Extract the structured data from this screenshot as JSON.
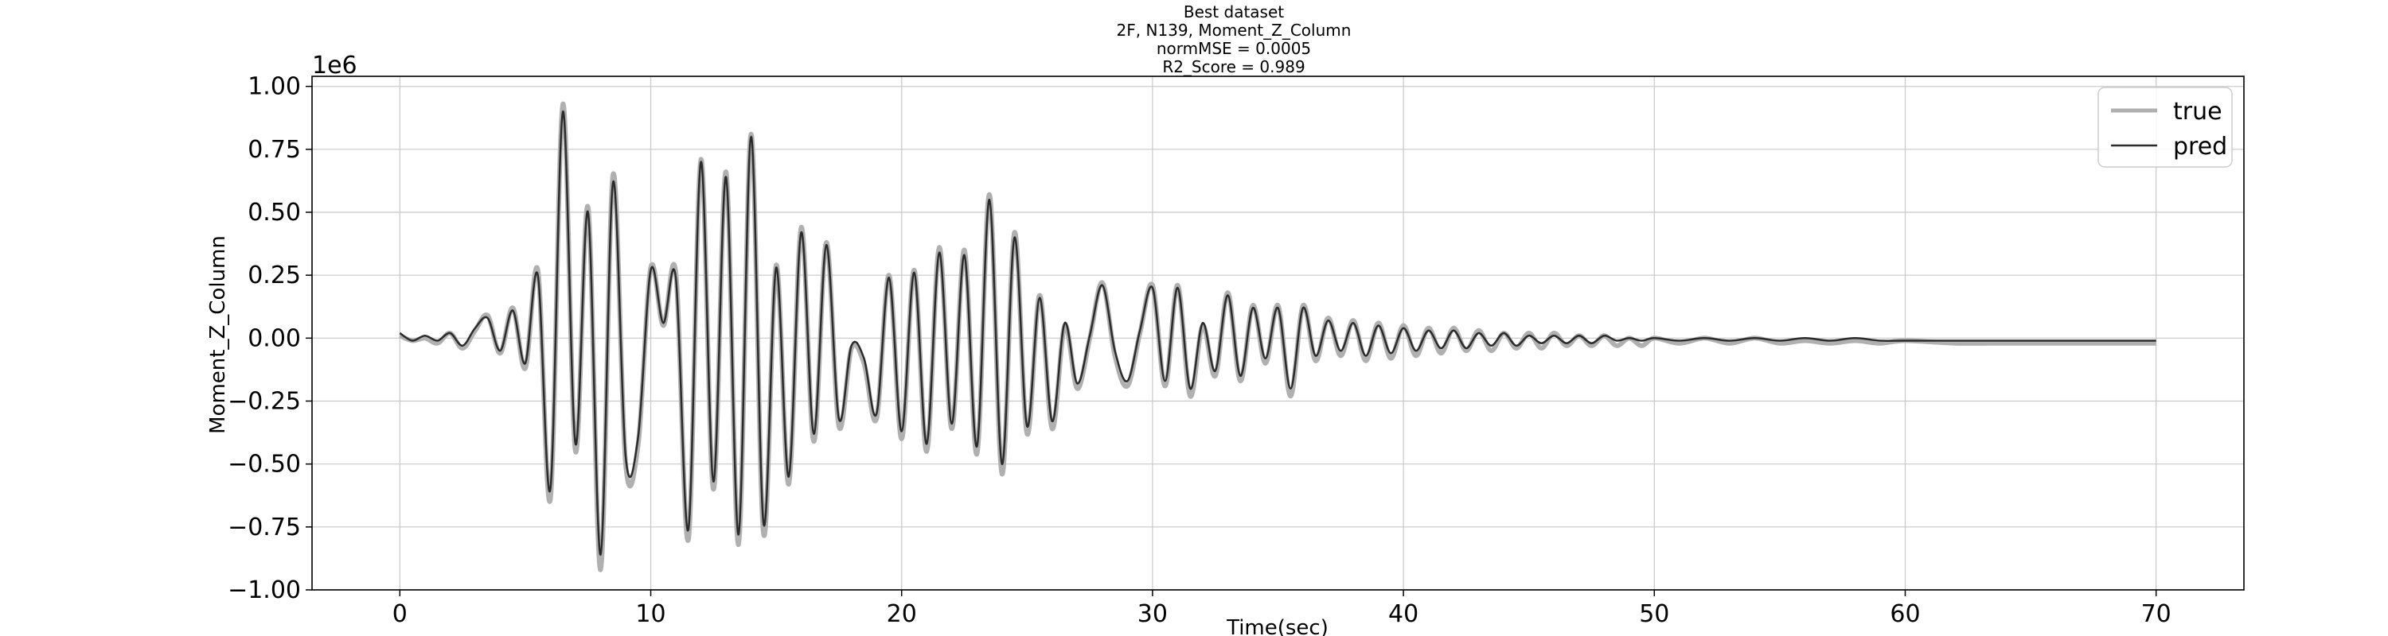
{
  "chart_data": {
    "type": "line",
    "title_lines": [
      "Best dataset",
      "2F, N139, Moment_Z_Column",
      "normMSE = 0.0005",
      "R2_Score = 0.989"
    ],
    "xlabel": "Time(sec)",
    "ylabel": "Moment_Z_Column",
    "y_offset_label": "1e6",
    "xlim": [
      -3.5,
      73.5
    ],
    "ylim": [
      -1.0,
      1.04
    ],
    "x_ticks": [
      0,
      10,
      20,
      30,
      40,
      50,
      60,
      70
    ],
    "x_tick_labels": [
      "0",
      "10",
      "20",
      "30",
      "40",
      "50",
      "60",
      "70"
    ],
    "y_ticks": [
      1.0,
      0.75,
      0.5,
      0.25,
      0.0,
      -0.25,
      -0.5,
      -0.75,
      -1.0
    ],
    "y_tick_labels": [
      "1.00",
      "0.75",
      "0.50",
      "0.25",
      "0.00",
      "−0.25",
      "−0.50",
      "−0.75",
      "−1.00"
    ],
    "grid": true,
    "legend_position": "top-right",
    "series": [
      {
        "name": "true",
        "color": "#b0b0b0",
        "x": [
          0,
          0.5,
          1.0,
          1.5,
          2.0,
          2.5,
          3.0,
          3.5,
          4.0,
          4.5,
          5.0,
          5.5,
          6.0,
          6.5,
          7.0,
          7.5,
          8.0,
          8.5,
          9.0,
          9.5,
          10.0,
          10.5,
          11.0,
          11.5,
          12.0,
          12.5,
          13.0,
          13.5,
          14.0,
          14.5,
          15.0,
          15.5,
          16.0,
          16.5,
          17.0,
          17.5,
          18.0,
          18.5,
          19.0,
          19.5,
          20.0,
          20.5,
          21.0,
          21.5,
          22.0,
          22.5,
          23.0,
          23.5,
          24.0,
          24.5,
          25.0,
          25.5,
          26.0,
          26.5,
          27.0,
          27.5,
          28.0,
          28.5,
          29.0,
          29.5,
          30.0,
          30.5,
          31.0,
          31.5,
          32.0,
          32.5,
          33.0,
          33.5,
          34.0,
          34.5,
          35.0,
          35.5,
          36.0,
          36.5,
          37.0,
          37.5,
          38.0,
          38.5,
          39.0,
          39.5,
          40.0,
          40.5,
          41.0,
          41.5,
          42.0,
          42.5,
          43.0,
          43.5,
          44.0,
          44.5,
          45.0,
          45.5,
          46.0,
          46.5,
          47.0,
          47.5,
          48.0,
          48.5,
          49.0,
          49.5,
          50.0,
          51.0,
          52.0,
          53.0,
          54.0,
          55.0,
          56.0,
          57.0,
          58.0,
          59.0,
          60.0,
          62.0,
          64.0,
          66.0,
          68.0,
          70.0
        ],
        "y": [
          0.01,
          -0.01,
          0.0,
          -0.02,
          0.02,
          -0.04,
          0.03,
          0.09,
          -0.06,
          0.12,
          -0.12,
          0.27,
          -0.64,
          0.93,
          -0.45,
          0.52,
          -0.92,
          0.65,
          -0.5,
          -0.42,
          0.28,
          0.05,
          0.26,
          -0.8,
          0.71,
          -0.6,
          0.66,
          -0.82,
          0.81,
          -0.78,
          0.29,
          -0.58,
          0.44,
          -0.41,
          0.38,
          -0.35,
          -0.04,
          -0.1,
          -0.32,
          0.25,
          -0.4,
          0.27,
          -0.45,
          0.36,
          -0.36,
          0.35,
          -0.46,
          0.57,
          -0.54,
          0.42,
          -0.38,
          0.17,
          -0.36,
          0.05,
          -0.2,
          0.0,
          0.22,
          -0.07,
          -0.19,
          0.02,
          0.21,
          -0.19,
          0.21,
          -0.23,
          0.05,
          -0.15,
          0.18,
          -0.17,
          0.13,
          -0.1,
          0.13,
          -0.23,
          0.13,
          -0.09,
          0.08,
          -0.07,
          0.07,
          -0.09,
          0.06,
          -0.08,
          0.05,
          -0.07,
          0.04,
          -0.06,
          0.04,
          -0.05,
          0.03,
          -0.05,
          0.02,
          -0.04,
          0.02,
          -0.04,
          0.02,
          -0.03,
          0.01,
          -0.03,
          0.01,
          -0.03,
          0.0,
          -0.03,
          0.0,
          -0.02,
          0.0,
          -0.02,
          0.0,
          -0.02,
          -0.01,
          -0.02,
          -0.01,
          -0.02,
          -0.01,
          -0.02,
          -0.02,
          -0.02,
          -0.02,
          -0.02
        ]
      },
      {
        "name": "pred",
        "color": "#2b2b2b",
        "x": [
          0,
          0.5,
          1.0,
          1.5,
          2.0,
          2.5,
          3.0,
          3.5,
          4.0,
          4.5,
          5.0,
          5.5,
          6.0,
          6.5,
          7.0,
          7.5,
          8.0,
          8.5,
          9.0,
          9.5,
          10.0,
          10.5,
          11.0,
          11.5,
          12.0,
          12.5,
          13.0,
          13.5,
          14.0,
          14.5,
          15.0,
          15.5,
          16.0,
          16.5,
          17.0,
          17.5,
          18.0,
          18.5,
          19.0,
          19.5,
          20.0,
          20.5,
          21.0,
          21.5,
          22.0,
          22.5,
          23.0,
          23.5,
          24.0,
          24.5,
          25.0,
          25.5,
          26.0,
          26.5,
          27.0,
          27.5,
          28.0,
          28.5,
          29.0,
          29.5,
          30.0,
          30.5,
          31.0,
          31.5,
          32.0,
          32.5,
          33.0,
          33.5,
          34.0,
          34.5,
          35.0,
          35.5,
          36.0,
          36.5,
          37.0,
          37.5,
          38.0,
          38.5,
          39.0,
          39.5,
          40.0,
          40.5,
          41.0,
          41.5,
          42.0,
          42.5,
          43.0,
          43.5,
          44.0,
          44.5,
          45.0,
          45.5,
          46.0,
          46.5,
          47.0,
          47.5,
          48.0,
          48.5,
          49.0,
          49.5,
          50.0,
          51.0,
          52.0,
          53.0,
          54.0,
          55.0,
          56.0,
          57.0,
          58.0,
          59.0,
          60.0,
          62.0,
          64.0,
          66.0,
          68.0,
          70.0
        ],
        "y": [
          0.02,
          -0.01,
          0.01,
          -0.01,
          0.02,
          -0.03,
          0.04,
          0.08,
          -0.05,
          0.11,
          -0.1,
          0.25,
          -0.6,
          0.9,
          -0.42,
          0.5,
          -0.86,
          0.62,
          -0.47,
          -0.39,
          0.27,
          0.06,
          0.24,
          -0.76,
          0.7,
          -0.57,
          0.64,
          -0.78,
          0.8,
          -0.74,
          0.28,
          -0.55,
          0.42,
          -0.38,
          0.37,
          -0.32,
          -0.03,
          -0.08,
          -0.3,
          0.24,
          -0.37,
          0.26,
          -0.42,
          0.34,
          -0.34,
          0.33,
          -0.43,
          0.55,
          -0.5,
          0.4,
          -0.35,
          0.16,
          -0.33,
          0.06,
          -0.18,
          0.01,
          0.21,
          -0.05,
          -0.17,
          0.03,
          0.2,
          -0.17,
          0.2,
          -0.2,
          0.06,
          -0.13,
          0.17,
          -0.15,
          0.12,
          -0.08,
          0.12,
          -0.2,
          0.12,
          -0.07,
          0.07,
          -0.05,
          0.06,
          -0.07,
          0.05,
          -0.06,
          0.04,
          -0.05,
          0.03,
          -0.04,
          0.03,
          -0.04,
          0.02,
          -0.03,
          0.02,
          -0.03,
          0.01,
          -0.02,
          0.01,
          -0.02,
          0.01,
          -0.02,
          0.01,
          -0.01,
          0.0,
          -0.01,
          0.0,
          -0.01,
          0.0,
          -0.01,
          0.0,
          -0.01,
          0.0,
          -0.01,
          0.0,
          -0.01,
          -0.01,
          -0.01,
          -0.01,
          -0.01,
          -0.01,
          -0.01
        ]
      }
    ]
  }
}
